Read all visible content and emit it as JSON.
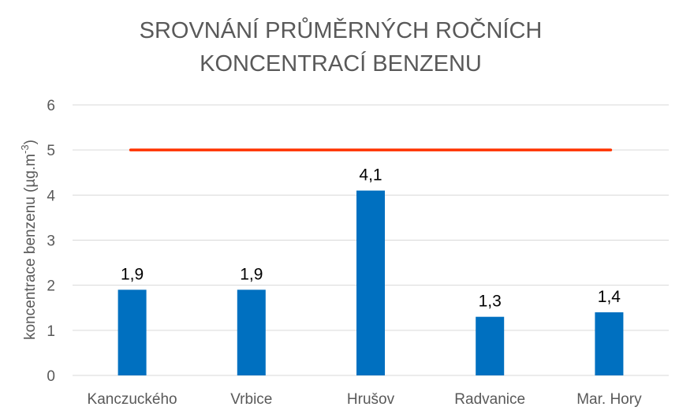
{
  "chart_data": {
    "type": "bar",
    "title_lines": [
      "SROVNÁNÍ PRŮMĚRNÝCH ROČNÍCH",
      "KONCENTRACÍ BENZENU"
    ],
    "ylabel": "koncentrace benzenu (µg.m",
    "ylabel_sup": "-3",
    "ylabel_close": ")",
    "xlabel": "",
    "categories": [
      "Kanczuckého",
      "Vrbice",
      "Hrušov",
      "Radvanice",
      "Mar. Hory"
    ],
    "values": [
      1.9,
      1.9,
      4.1,
      1.3,
      1.4
    ],
    "value_labels": [
      "1,9",
      "1,9",
      "4,1",
      "1,3",
      "1,4"
    ],
    "ylim": [
      0,
      6
    ],
    "yticks": [
      0,
      1,
      2,
      3,
      4,
      5,
      6
    ],
    "limit_line": {
      "value": 5,
      "color": "#ff3300"
    },
    "bar_color": "#0070c0",
    "grid": true,
    "legend": "none"
  }
}
